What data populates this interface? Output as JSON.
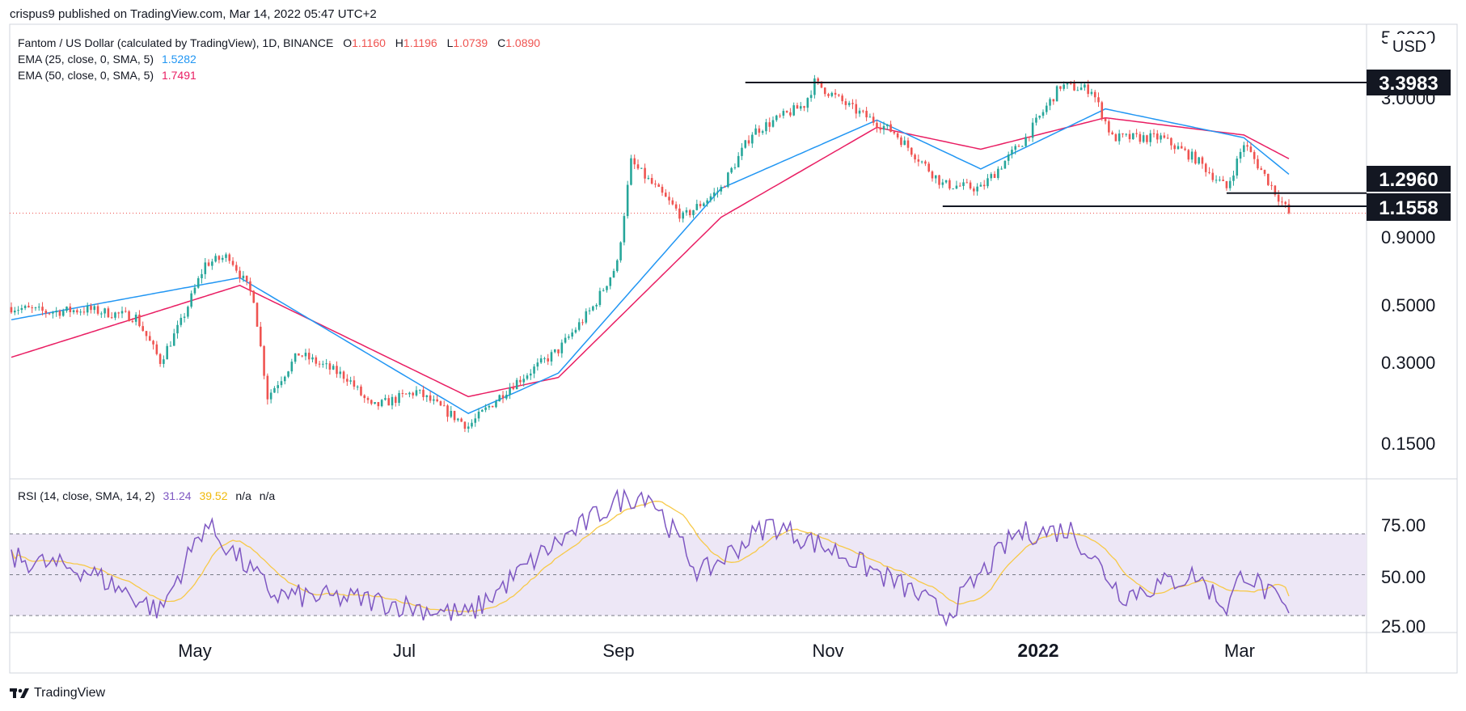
{
  "publisher": {
    "text": "crispus9 published on TradingView.com, Mar 14, 2022 05:47 UTC+2"
  },
  "legend": {
    "symbol": "Fantom / US Dollar (calculated by TradingView), 1D, BINANCE",
    "ohlc": [
      {
        "k": "O",
        "v": "1.1160"
      },
      {
        "k": "H",
        "v": "1.1196"
      },
      {
        "k": "L",
        "v": "1.0739"
      },
      {
        "k": "C",
        "v": "1.0890"
      }
    ],
    "ema25": {
      "label": "EMA (25, close, 0, SMA, 5)",
      "value": "1.5282",
      "color": "#2196f3"
    },
    "ema50": {
      "label": "EMA (50, close, 0, SMA, 5)",
      "value": "1.7491",
      "color": "#e91e63"
    },
    "rsi": {
      "label": "RSI (14, close, SMA, 14, 2)",
      "value": "31.24",
      "ma": "39.52",
      "na1": "n/a",
      "na2": "n/a",
      "color": "#7e57c2",
      "ma_color": "#f7c948"
    }
  },
  "currency": "USD",
  "price_axis": {
    "ticks": [
      "5.0000",
      "3.0000",
      "0.9000",
      "0.5000",
      "0.3000",
      "0.1500"
    ],
    "markers": [
      "3.3983",
      "1.2960",
      "1.1558"
    ]
  },
  "rsi_axis": {
    "ticks": [
      "75.00",
      "50.00",
      "25.00"
    ]
  },
  "time_axis": {
    "ticks": [
      "May",
      "Jul",
      "Sep",
      "Nov",
      "2022",
      "Mar"
    ]
  },
  "brand": "TradingView",
  "colors": {
    "up": "#26a69a",
    "down": "#ef5350",
    "level": "#131722",
    "rsi_band": "#ede7f6"
  },
  "chart_data": {
    "type": "candlestick",
    "symbol": "FTMUSD",
    "interval": "1D",
    "y_scale": "log",
    "x_range": [
      "2021-03-10",
      "2022-03-14"
    ],
    "horizontal_levels": [
      {
        "value": 3.3983,
        "from": "2021-10-08",
        "to": "2022-03-14"
      },
      {
        "value": 1.296,
        "from": "2022-02-24",
        "to": "2022-03-14"
      },
      {
        "value": 1.1558,
        "from": "2021-12-04",
        "to": "2022-03-14"
      }
    ],
    "last_close": 1.089,
    "price_path": [
      [
        "2021-03-10",
        0.48
      ],
      [
        "2021-03-20",
        0.46
      ],
      [
        "2021-04-01",
        0.47
      ],
      [
        "2021-04-15",
        0.44
      ],
      [
        "2021-04-22",
        0.3
      ],
      [
        "2021-04-28",
        0.42
      ],
      [
        "2021-05-05",
        0.7
      ],
      [
        "2021-05-12",
        0.75
      ],
      [
        "2021-05-19",
        0.52
      ],
      [
        "2021-05-23",
        0.22
      ],
      [
        "2021-06-01",
        0.32
      ],
      [
        "2021-06-15",
        0.26
      ],
      [
        "2021-06-22",
        0.2
      ],
      [
        "2021-07-05",
        0.23
      ],
      [
        "2021-07-20",
        0.17
      ],
      [
        "2021-08-01",
        0.24
      ],
      [
        "2021-08-15",
        0.33
      ],
      [
        "2021-08-25",
        0.48
      ],
      [
        "2021-09-01",
        0.7
      ],
      [
        "2021-09-05",
        1.7
      ],
      [
        "2021-09-10",
        1.45
      ],
      [
        "2021-09-20",
        1.05
      ],
      [
        "2021-10-01",
        1.35
      ],
      [
        "2021-10-10",
        2.2
      ],
      [
        "2021-10-25",
        2.8
      ],
      [
        "2021-10-28",
        3.4
      ],
      [
        "2021-11-08",
        2.7
      ],
      [
        "2021-11-20",
        2.2
      ],
      [
        "2021-12-04",
        1.4
      ],
      [
        "2021-12-15",
        1.35
      ],
      [
        "2021-12-28",
        2.1
      ],
      [
        "2022-01-07",
        3.3
      ],
      [
        "2022-01-16",
        3.2
      ],
      [
        "2022-01-22",
        2.1
      ],
      [
        "2022-02-05",
        2.1
      ],
      [
        "2022-02-15",
        1.75
      ],
      [
        "2022-02-24",
        1.35
      ],
      [
        "2022-03-01",
        2.0
      ],
      [
        "2022-03-14",
        1.089
      ]
    ],
    "ema25_path": [
      [
        "2021-03-10",
        0.43
      ],
      [
        "2021-05-15",
        0.62
      ],
      [
        "2021-07-20",
        0.19
      ],
      [
        "2021-08-15",
        0.27
      ],
      [
        "2021-10-01",
        1.35
      ],
      [
        "2021-11-15",
        2.45
      ],
      [
        "2021-12-15",
        1.6
      ],
      [
        "2022-01-20",
        2.7
      ],
      [
        "2022-03-01",
        2.1
      ],
      [
        "2022-03-14",
        1.5282
      ]
    ],
    "ema50_path": [
      [
        "2021-03-10",
        0.31
      ],
      [
        "2021-05-15",
        0.58
      ],
      [
        "2021-07-20",
        0.22
      ],
      [
        "2021-08-15",
        0.26
      ],
      [
        "2021-10-01",
        1.05
      ],
      [
        "2021-11-15",
        2.3
      ],
      [
        "2021-12-15",
        1.9
      ],
      [
        "2022-01-20",
        2.5
      ],
      [
        "2022-03-01",
        2.15
      ],
      [
        "2022-03-14",
        1.7491
      ]
    ],
    "rsi": {
      "overbought": 70,
      "oversold": 30,
      "mid": 50,
      "last": 31.24,
      "ma_last": 39.52,
      "path": [
        [
          "2021-03-10",
          58
        ],
        [
          "2021-04-01",
          52
        ],
        [
          "2021-04-22",
          32
        ],
        [
          "2021-05-05",
          75
        ],
        [
          "2021-05-25",
          40
        ],
        [
          "2021-06-20",
          38
        ],
        [
          "2021-07-20",
          30
        ],
        [
          "2021-08-10",
          60
        ],
        [
          "2021-09-01",
          86
        ],
        [
          "2021-09-10",
          90
        ],
        [
          "2021-09-25",
          50
        ],
        [
          "2021-10-15",
          75
        ],
        [
          "2021-11-05",
          60
        ],
        [
          "2021-11-25",
          42
        ],
        [
          "2021-12-05",
          30
        ],
        [
          "2021-12-25",
          70
        ],
        [
          "2022-01-10",
          72
        ],
        [
          "2022-01-25",
          40
        ],
        [
          "2022-02-15",
          50
        ],
        [
          "2022-02-24",
          34
        ],
        [
          "2022-03-01",
          52
        ],
        [
          "2022-03-14",
          31.24
        ]
      ]
    }
  }
}
